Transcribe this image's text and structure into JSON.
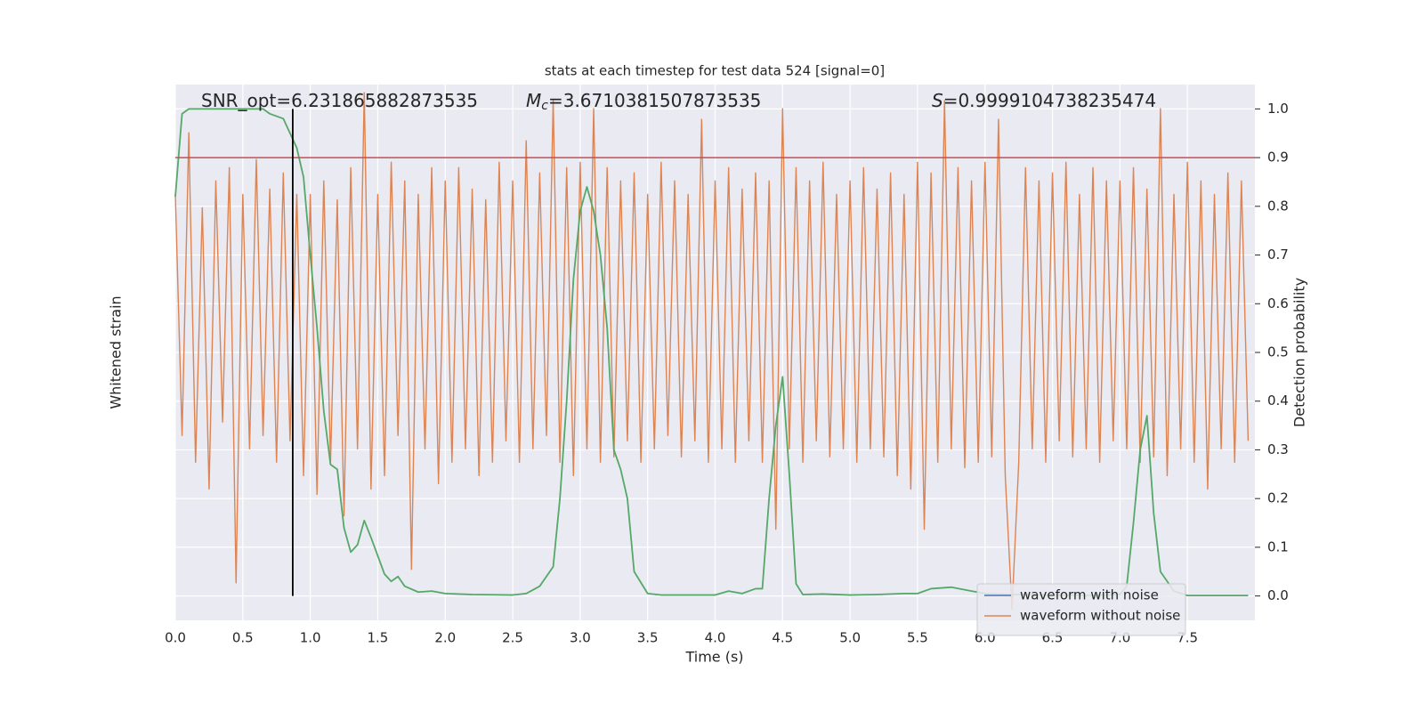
{
  "chart_data": {
    "type": "line",
    "title": "stats at each timestep for test data 524 [signal=0]",
    "xlabel": "Time (s)",
    "ylabel": "Whitened strain",
    "y2label": "Detection probability",
    "annotations": [
      {
        "text": "SNR_opt=6.231865882873535"
      },
      {
        "var": "M",
        "sub": "c",
        "text": "=3.6710381507873535"
      },
      {
        "var": "S",
        "text": "=0.9999104738235474"
      }
    ],
    "xlim": [
      0,
      8
    ],
    "xticks": [
      {
        "value": 0,
        "label": "0.0"
      },
      0.5,
      {
        "value": 1,
        "label": "1.0"
      },
      1.5,
      {
        "value": 2,
        "label": "2.0"
      },
      2.5,
      {
        "value": 3,
        "label": "3.0"
      },
      3.5,
      {
        "value": 4,
        "label": "4.0"
      },
      4.5,
      {
        "value": 5,
        "label": "5.0"
      },
      5.5,
      {
        "value": 6,
        "label": "6.0"
      },
      6.5,
      {
        "value": 7,
        "label": "7.0"
      },
      7.5
    ],
    "ylim": [
      -1.09,
      0.91
    ],
    "y2lim": [
      -0.05,
      1.05
    ],
    "y2ticks": [
      {
        "value": 0,
        "label": "0.0"
      },
      0.1,
      0.2,
      0.3,
      0.4,
      0.5,
      0.6,
      0.7,
      0.8,
      0.9,
      {
        "value": 1,
        "label": "1.0"
      }
    ],
    "grid": true,
    "legend": "lower right",
    "hlines": [
      {
        "value": 0.9,
        "color": "#c44e52",
        "axis": "y2"
      }
    ],
    "vlines": [
      {
        "value": 0.87,
        "color": "#000000",
        "ymin": 0,
        "ymax": 1
      }
    ],
    "series": [
      {
        "name": "waveform with noise",
        "color": "#4c72b0"
      },
      {
        "name": "waveform without noise",
        "color": "#dd8452",
        "x": [
          0,
          0.05,
          0.1,
          0.15,
          0.2,
          0.25,
          0.3,
          0.35,
          0.4,
          0.45,
          0.5,
          0.55,
          0.6,
          0.65,
          0.7,
          0.75,
          0.8,
          0.85,
          0.9,
          0.95,
          1,
          1.05,
          1.1,
          1.15,
          1.2,
          1.25,
          1.3,
          1.35,
          1.4,
          1.45,
          1.5,
          1.55,
          1.6,
          1.65,
          1.7,
          1.75,
          1.8,
          1.85,
          1.9,
          1.95,
          2,
          2.05,
          2.1,
          2.15,
          2.2,
          2.25,
          2.3,
          2.35,
          2.4,
          2.45,
          2.5,
          2.55,
          2.6,
          2.65,
          2.7,
          2.75,
          2.8,
          2.85,
          2.9,
          2.95,
          3,
          3.05,
          3.1,
          3.15,
          3.2,
          3.25,
          3.3,
          3.35,
          3.4,
          3.45,
          3.5,
          3.55,
          3.6,
          3.65,
          3.7,
          3.75,
          3.8,
          3.85,
          3.9,
          3.95,
          4,
          4.05,
          4.1,
          4.15,
          4.2,
          4.25,
          4.3,
          4.35,
          4.4,
          4.45,
          4.5,
          4.55,
          4.6,
          4.65,
          4.7,
          4.75,
          4.8,
          4.85,
          4.9,
          4.95,
          5,
          5.05,
          5.1,
          5.15,
          5.2,
          5.25,
          5.3,
          5.35,
          5.4,
          5.45,
          5.5,
          5.55,
          5.6,
          5.65,
          5.7,
          5.75,
          5.8,
          5.85,
          5.9,
          5.95,
          6,
          6.05,
          6.1,
          6.15,
          6.2,
          6.25,
          6.3,
          6.35,
          6.4,
          6.45,
          6.5,
          6.55,
          6.6,
          6.65,
          6.7,
          6.75,
          6.8,
          6.85,
          6.9,
          6.95,
          7,
          7.05,
          7.1,
          7.15,
          7.2,
          7.25,
          7.3,
          7.35,
          7.4,
          7.45,
          7.5,
          7.55,
          7.6,
          7.65,
          7.7,
          7.75,
          7.8,
          7.85,
          7.9,
          7.95
        ],
        "values": [
          0.5,
          -0.4,
          0.73,
          -0.5,
          0.45,
          -0.6,
          0.55,
          -0.35,
          0.6,
          -0.95,
          0.5,
          -0.45,
          0.63,
          -0.4,
          0.52,
          -0.5,
          0.58,
          -0.42,
          0.5,
          -0.55,
          0.5,
          -0.62,
          0.55,
          -0.5,
          0.48,
          -0.7,
          0.6,
          -0.45,
          0.88,
          -0.6,
          0.5,
          -0.55,
          0.62,
          -0.4,
          0.55,
          -0.9,
          0.5,
          -0.45,
          0.6,
          -0.58,
          0.55,
          -0.5,
          0.6,
          -0.45,
          0.52,
          -0.55,
          0.48,
          -0.5,
          0.62,
          -0.42,
          0.55,
          -0.5,
          0.7,
          -0.45,
          0.58,
          -0.4,
          0.85,
          -0.5,
          0.6,
          -0.55,
          0.62,
          -0.45,
          0.82,
          -0.5,
          0.6,
          -0.48,
          0.55,
          -0.42,
          0.58,
          -0.5,
          0.5,
          -0.45,
          0.62,
          -0.4,
          0.55,
          -0.48,
          0.5,
          -0.42,
          0.78,
          -0.5,
          0.55,
          -0.45,
          0.6,
          -0.5,
          0.52,
          -0.42,
          0.58,
          -0.5,
          0.55,
          -0.75,
          0.82,
          -0.45,
          0.6,
          -0.5,
          0.55,
          -0.42,
          0.62,
          -0.48,
          0.5,
          -0.45,
          0.55,
          -0.5,
          0.6,
          -0.45,
          0.52,
          -0.48,
          0.58,
          -0.55,
          0.5,
          -0.6,
          0.62,
          -0.75,
          0.58,
          -0.5,
          0.85,
          -0.45,
          0.6,
          -0.52,
          0.55,
          -0.5,
          0.62,
          -0.48,
          0.78,
          -0.55,
          -1.05,
          -0.5,
          0.6,
          -0.45,
          0.55,
          -0.5,
          0.58,
          -0.42,
          0.62,
          -0.48,
          0.5,
          -0.45,
          0.6,
          -0.5,
          0.55,
          -0.42,
          0.55,
          -0.45,
          0.6,
          -0.5,
          0.52,
          -0.48,
          0.82,
          -0.55,
          0.5,
          -0.45,
          0.62,
          -0.5,
          0.55,
          -0.6,
          0.5,
          -0.45,
          0.58,
          -0.5,
          0.55,
          -0.42
        ]
      },
      {
        "color": "#55a868",
        "axis": "y2",
        "x": [
          0,
          0.05,
          0.1,
          0.65,
          0.7,
          0.8,
          0.9,
          0.95,
          1,
          1.05,
          1.1,
          1.15,
          1.2,
          1.25,
          1.3,
          1.35,
          1.4,
          1.45,
          1.55,
          1.6,
          1.65,
          1.7,
          1.8,
          1.9,
          2,
          2.2,
          2.5,
          2.6,
          2.7,
          2.8,
          2.85,
          2.9,
          2.95,
          3,
          3.05,
          3.1,
          3.15,
          3.2,
          3.25,
          3.3,
          3.35,
          3.4,
          3.5,
          3.6,
          4,
          4.1,
          4.2,
          4.3,
          4.35,
          4.4,
          4.45,
          4.5,
          4.55,
          4.6,
          4.65,
          4.8,
          5,
          5.2,
          5.4,
          5.5,
          5.6,
          5.75,
          5.9,
          6,
          6.2,
          6.5,
          6.8,
          7,
          7.05,
          7.1,
          7.15,
          7.2,
          7.25,
          7.3,
          7.4,
          7.5,
          7.95
        ],
        "values": [
          0.82,
          0.99,
          1,
          1,
          0.99,
          0.98,
          0.92,
          0.86,
          0.7,
          0.55,
          0.38,
          0.27,
          0.26,
          0.14,
          0.09,
          0.105,
          0.155,
          0.12,
          0.045,
          0.03,
          0.04,
          0.02,
          0.008,
          0.01,
          0.005,
          0.003,
          0.002,
          0.005,
          0.02,
          0.06,
          0.2,
          0.4,
          0.65,
          0.79,
          0.84,
          0.79,
          0.7,
          0.55,
          0.3,
          0.26,
          0.2,
          0.05,
          0.005,
          0.002,
          0.002,
          0.01,
          0.005,
          0.015,
          0.015,
          0.2,
          0.35,
          0.45,
          0.25,
          0.025,
          0.003,
          0.004,
          0.002,
          0.003,
          0.005,
          0.005,
          0.015,
          0.018,
          0.01,
          0.005,
          0.003,
          0.002,
          0.001,
          0.003,
          0.02,
          0.15,
          0.3,
          0.37,
          0.17,
          0.05,
          0.01,
          0.001,
          0.001
        ]
      }
    ]
  }
}
